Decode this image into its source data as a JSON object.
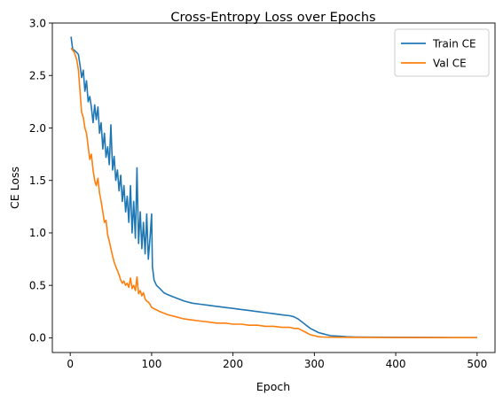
{
  "chart_data": {
    "type": "line",
    "title": "Cross-Entropy Loss over Epochs",
    "xlabel": "Epoch",
    "ylabel": "CE Loss",
    "xlim": [
      -22,
      522
    ],
    "ylim": [
      -0.14,
      3.0
    ],
    "xticks": [
      0,
      100,
      200,
      300,
      400,
      500
    ],
    "yticks": [
      0.0,
      0.5,
      1.0,
      1.5,
      2.0,
      2.5,
      3.0
    ],
    "ytick_labels": [
      "0.0",
      "0.5",
      "1.0",
      "1.5",
      "2.0",
      "2.5",
      "3.0"
    ],
    "grid": false,
    "legend_position": "upper-right",
    "series": [
      {
        "name": "Train CE",
        "color": "#1f77b4",
        "x": [
          1,
          3,
          5,
          8,
          10,
          12,
          14,
          16,
          18,
          20,
          22,
          24,
          26,
          28,
          30,
          32,
          34,
          36,
          38,
          40,
          42,
          44,
          46,
          48,
          50,
          52,
          54,
          56,
          58,
          60,
          62,
          64,
          66,
          68,
          70,
          72,
          74,
          76,
          78,
          80,
          82,
          84,
          86,
          88,
          90,
          92,
          94,
          96,
          98,
          100,
          101,
          103,
          106,
          110,
          115,
          120,
          130,
          140,
          150,
          160,
          170,
          180,
          190,
          200,
          210,
          220,
          230,
          240,
          250,
          260,
          270,
          275,
          280,
          285,
          290,
          295,
          300,
          305,
          310,
          315,
          320,
          330,
          340,
          350,
          370,
          400,
          430,
          460,
          500
        ],
        "y": [
          2.87,
          2.75,
          2.74,
          2.72,
          2.7,
          2.6,
          2.48,
          2.55,
          2.35,
          2.45,
          2.25,
          2.3,
          2.2,
          2.05,
          2.22,
          2.08,
          2.2,
          1.95,
          2.05,
          1.8,
          1.95,
          1.72,
          1.82,
          1.65,
          2.03,
          1.6,
          1.73,
          1.5,
          1.6,
          1.4,
          1.55,
          1.3,
          1.45,
          1.2,
          1.35,
          1.1,
          1.45,
          1.0,
          1.3,
          0.95,
          1.62,
          0.9,
          1.2,
          0.85,
          1.1,
          0.8,
          1.18,
          0.75,
          0.95,
          1.18,
          0.68,
          0.55,
          0.5,
          0.47,
          0.43,
          0.41,
          0.38,
          0.35,
          0.33,
          0.32,
          0.31,
          0.3,
          0.29,
          0.28,
          0.27,
          0.26,
          0.25,
          0.24,
          0.23,
          0.22,
          0.21,
          0.2,
          0.18,
          0.15,
          0.12,
          0.09,
          0.07,
          0.05,
          0.04,
          0.03,
          0.02,
          0.015,
          0.01,
          0.008,
          0.006,
          0.005,
          0.004,
          0.003,
          0.002
        ]
      },
      {
        "name": "Val CE",
        "color": "#ff7f0e",
        "x": [
          1,
          3,
          5,
          8,
          10,
          12,
          14,
          16,
          18,
          20,
          22,
          24,
          26,
          28,
          30,
          32,
          34,
          36,
          38,
          40,
          42,
          44,
          46,
          48,
          50,
          52,
          54,
          56,
          58,
          60,
          62,
          64,
          66,
          68,
          70,
          72,
          74,
          76,
          78,
          80,
          82,
          84,
          86,
          88,
          90,
          92,
          94,
          96,
          98,
          100,
          105,
          110,
          120,
          130,
          140,
          150,
          160,
          170,
          180,
          190,
          200,
          210,
          220,
          230,
          240,
          250,
          260,
          270,
          275,
          280,
          285,
          290,
          295,
          300,
          305,
          310,
          320,
          330,
          350,
          400,
          450,
          500
        ],
        "y": [
          2.76,
          2.74,
          2.72,
          2.65,
          2.55,
          2.35,
          2.15,
          2.1,
          2.0,
          1.95,
          1.82,
          1.7,
          1.75,
          1.6,
          1.5,
          1.45,
          1.52,
          1.38,
          1.3,
          1.2,
          1.1,
          1.12,
          0.98,
          0.92,
          0.85,
          0.78,
          0.72,
          0.68,
          0.64,
          0.6,
          0.55,
          0.52,
          0.54,
          0.5,
          0.52,
          0.48,
          0.57,
          0.47,
          0.5,
          0.45,
          0.58,
          0.42,
          0.45,
          0.4,
          0.43,
          0.37,
          0.35,
          0.34,
          0.32,
          0.29,
          0.27,
          0.25,
          0.22,
          0.2,
          0.18,
          0.17,
          0.16,
          0.15,
          0.14,
          0.14,
          0.13,
          0.13,
          0.12,
          0.12,
          0.11,
          0.11,
          0.1,
          0.1,
          0.09,
          0.09,
          0.07,
          0.05,
          0.03,
          0.02,
          0.01,
          0.008,
          0.006,
          0.005,
          0.004,
          0.003,
          0.002,
          0.002
        ]
      }
    ]
  }
}
